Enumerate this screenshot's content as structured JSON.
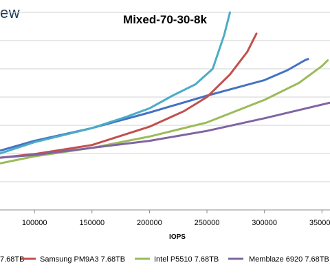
{
  "brand": {
    "logo_text": "ew"
  },
  "chart_data": {
    "type": "line",
    "title": "Mixed-70-30-8k",
    "xlabel": "IOPS",
    "ylabel": "",
    "xlim": [
      70000,
      357000
    ],
    "ylim": [
      0,
      10
    ],
    "x_ticks": [
      100000,
      150000,
      200000,
      250000,
      300000,
      350000
    ],
    "x_tick_labels": [
      "100000",
      "150000",
      "200000",
      "250000",
      "300000",
      "350000"
    ],
    "y_gridlines": [
      1,
      2,
      3,
      4,
      5,
      6,
      7
    ],
    "grid": true,
    "legend_position": "bottom",
    "series": [
      {
        "name": "7.68TB",
        "color": "#4472c4",
        "points": [
          [
            70000,
            2.1
          ],
          [
            100000,
            2.45
          ],
          [
            150000,
            2.9
          ],
          [
            200000,
            3.45
          ],
          [
            250000,
            4.05
          ],
          [
            300000,
            4.6
          ],
          [
            320000,
            4.95
          ],
          [
            335000,
            5.3
          ],
          [
            338000,
            5.35
          ]
        ]
      },
      {
        "name": "Samsung PM9A3 7.68TB",
        "color": "#c0504d",
        "points": [
          [
            70000,
            1.85
          ],
          [
            100000,
            1.98
          ],
          [
            150000,
            2.3
          ],
          [
            200000,
            2.95
          ],
          [
            230000,
            3.5
          ],
          [
            250000,
            4.0
          ],
          [
            270000,
            4.8
          ],
          [
            285000,
            5.6
          ],
          [
            293000,
            6.25
          ]
        ]
      },
      {
        "name": "Intel P5510 7.68TB",
        "color": "#9bbb59",
        "points": [
          [
            70000,
            1.65
          ],
          [
            100000,
            1.9
          ],
          [
            150000,
            2.2
          ],
          [
            200000,
            2.6
          ],
          [
            250000,
            3.1
          ],
          [
            300000,
            3.9
          ],
          [
            330000,
            4.5
          ],
          [
            350000,
            5.1
          ],
          [
            355000,
            5.3
          ]
        ]
      },
      {
        "name": "Memblaze 6920 7.68TB",
        "color": "#8064a2",
        "points": [
          [
            70000,
            1.85
          ],
          [
            100000,
            1.95
          ],
          [
            150000,
            2.2
          ],
          [
            200000,
            2.45
          ],
          [
            250000,
            2.8
          ],
          [
            300000,
            3.25
          ],
          [
            357000,
            3.8
          ]
        ]
      },
      {
        "name": "",
        "color": "#4bacc6",
        "points": [
          [
            70000,
            2.0
          ],
          [
            100000,
            2.4
          ],
          [
            150000,
            2.9
          ],
          [
            180000,
            3.3
          ],
          [
            200000,
            3.6
          ],
          [
            220000,
            4.05
          ],
          [
            240000,
            4.45
          ],
          [
            255000,
            5.0
          ],
          [
            265000,
            6.2
          ],
          [
            270000,
            7.0
          ]
        ]
      }
    ]
  }
}
